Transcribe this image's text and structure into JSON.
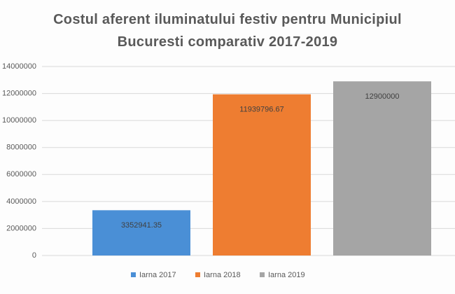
{
  "chart_data": {
    "type": "bar",
    "title": "Costul aferent iluminatului festiv pentru Municipiul Bucuresti comparativ 2017-2019",
    "series": [
      {
        "name": "Iarna 2017",
        "color": "#4a8fd6",
        "values": [
          3352941.35
        ]
      },
      {
        "name": "Iarna 2018",
        "color": "#ee7d31",
        "values": [
          11939796.67
        ]
      },
      {
        "name": "Iarna 2019",
        "color": "#a5a5a5",
        "values": [
          12900000
        ]
      }
    ],
    "ylim": [
      0,
      14000000
    ],
    "yticks": [
      0,
      2000000,
      4000000,
      6000000,
      8000000,
      10000000,
      12000000,
      14000000
    ],
    "grid": true,
    "legend": "bottom"
  }
}
